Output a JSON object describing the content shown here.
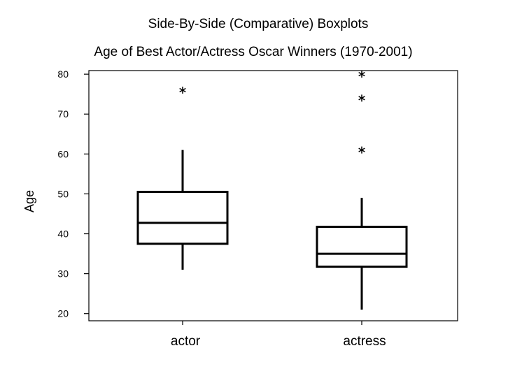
{
  "chart_data": {
    "type": "boxplot",
    "title": "Side-By-Side (Comparative) Boxplots",
    "subtitle": "Age of Best Actor/Actress Oscar Winners (1970-2001)",
    "xlabel": "",
    "ylabel": "Age",
    "ylim": [
      18.2,
      80.9
    ],
    "yticks": [
      20,
      30,
      40,
      50,
      60,
      70,
      80
    ],
    "grid": false,
    "categories": [
      "actor",
      "actress"
    ],
    "boxes": [
      {
        "category": "actor",
        "whisker_low": 31,
        "q1": 37.5,
        "median": 42.75,
        "q3": 50.5,
        "whisker_high": 61,
        "outliers": [
          76
        ]
      },
      {
        "category": "actress",
        "whisker_low": 21,
        "q1": 31.75,
        "median": 35,
        "q3": 41.75,
        "whisker_high": 49,
        "outliers": [
          61,
          74,
          80
        ]
      }
    ]
  }
}
